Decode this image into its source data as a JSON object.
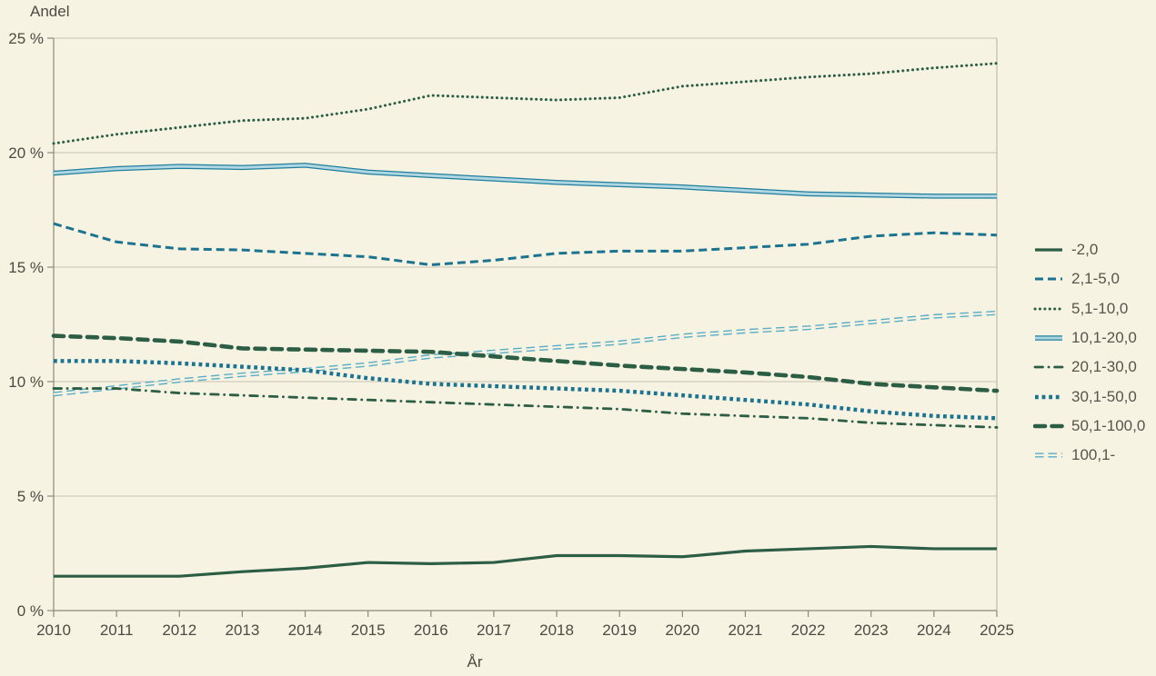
{
  "chart_data": {
    "type": "line",
    "ylabel": "Andel",
    "xlabel": "År",
    "x": [
      2010,
      2011,
      2012,
      2013,
      2014,
      2015,
      2016,
      2017,
      2018,
      2019,
      2020,
      2021,
      2022,
      2023,
      2024,
      2025
    ],
    "ylim": [
      0,
      25
    ],
    "ytick_step": 5,
    "ytick_suffix": " %",
    "grid": true,
    "legend_position": "right",
    "draw_order": [
      0,
      1,
      2,
      3,
      7,
      4,
      5,
      6
    ],
    "palette": {
      "background": "#f7f3e2",
      "dark_green": "#2b5e44",
      "teal_blue": "#1b7390",
      "light_blue_edge": "#1f7e9b",
      "light_blue": "#58adc6",
      "double_core": "#aed6e3",
      "grid": "#c6c3b2",
      "frame": "#b5b2a2",
      "axis": "#8b8979",
      "tick_text": "#4c4b42",
      "legend_text": "#56544c"
    },
    "series": [
      {
        "name": "-2,0",
        "style": "solid",
        "color": "dark_green",
        "values": [
          1.5,
          1.5,
          1.5,
          1.7,
          1.85,
          2.1,
          2.05,
          2.1,
          2.4,
          2.4,
          2.35,
          2.6,
          2.7,
          2.8,
          2.7,
          2.7
        ]
      },
      {
        "name": "2,1-5,0",
        "style": "dashed",
        "color": "teal_blue",
        "values": [
          16.9,
          16.1,
          15.8,
          15.75,
          15.6,
          15.45,
          15.1,
          15.3,
          15.6,
          15.7,
          15.7,
          15.85,
          16.0,
          16.35,
          16.5,
          16.4
        ]
      },
      {
        "name": "5,1-10,0",
        "style": "dotted",
        "color": "dark_green",
        "values": [
          20.4,
          20.8,
          21.1,
          21.4,
          21.5,
          21.9,
          22.5,
          22.4,
          22.3,
          22.4,
          22.9,
          23.1,
          23.3,
          23.45,
          23.7,
          23.9
        ]
      },
      {
        "name": "10,1-20,0",
        "style": "double-solid",
        "color": "light_blue_edge",
        "values": [
          19.1,
          19.3,
          19.4,
          19.35,
          19.45,
          19.15,
          19.0,
          18.85,
          18.7,
          18.6,
          18.5,
          18.35,
          18.2,
          18.15,
          18.1,
          18.1
        ]
      },
      {
        "name": "20,1-30,0",
        "style": "dash-dot",
        "color": "dark_green",
        "values": [
          9.7,
          9.7,
          9.5,
          9.4,
          9.3,
          9.2,
          9.1,
          9.0,
          8.9,
          8.8,
          8.6,
          8.5,
          8.4,
          8.2,
          8.1,
          8.0
        ]
      },
      {
        "name": "30,1-50,0",
        "style": "dotted-thick",
        "color": "teal_blue",
        "values": [
          10.9,
          10.9,
          10.8,
          10.65,
          10.5,
          10.15,
          9.9,
          9.8,
          9.7,
          9.6,
          9.4,
          9.2,
          9.0,
          8.7,
          8.5,
          8.4
        ]
      },
      {
        "name": "50,1-100,0",
        "style": "dashed-thick",
        "color": "dark_green",
        "values": [
          12.0,
          11.9,
          11.75,
          11.45,
          11.4,
          11.35,
          11.3,
          11.1,
          10.9,
          10.7,
          10.55,
          10.4,
          10.2,
          9.9,
          9.75,
          9.6
        ]
      },
      {
        "name": "100,1-",
        "style": "double-dashed",
        "color": "light_blue",
        "values": [
          9.45,
          9.75,
          10.05,
          10.3,
          10.5,
          10.75,
          11.1,
          11.3,
          11.5,
          11.7,
          12.0,
          12.2,
          12.35,
          12.6,
          12.85,
          13.0
        ]
      }
    ]
  }
}
